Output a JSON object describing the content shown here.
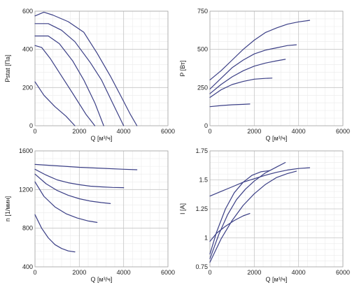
{
  "chart_data": [
    {
      "type": "line",
      "ylabel": "Pstat [Па]",
      "xlabel": "Q [м³/ч]",
      "xlim": [
        0,
        6000
      ],
      "ylim": [
        0,
        600
      ],
      "xticks": [
        0,
        2000,
        4000,
        6000
      ],
      "yticks": [
        0,
        200,
        400,
        600
      ],
      "grid": true,
      "series": [
        {
          "points": [
            [
              0,
              575
            ],
            [
              400,
              595
            ],
            [
              800,
              580
            ],
            [
              1500,
              545
            ],
            [
              2200,
              490
            ],
            [
              2800,
              380
            ],
            [
              3400,
              260
            ],
            [
              3900,
              150
            ],
            [
              4300,
              60
            ],
            [
              4600,
              0
            ]
          ]
        },
        {
          "points": [
            [
              0,
              535
            ],
            [
              600,
              535
            ],
            [
              1200,
              500
            ],
            [
              1800,
              440
            ],
            [
              2500,
              330
            ],
            [
              3000,
              240
            ],
            [
              3500,
              120
            ],
            [
              4000,
              0
            ]
          ]
        },
        {
          "points": [
            [
              0,
              470
            ],
            [
              600,
              470
            ],
            [
              1100,
              430
            ],
            [
              1700,
              340
            ],
            [
              2200,
              240
            ],
            [
              2700,
              120
            ],
            [
              3100,
              0
            ]
          ]
        },
        {
          "points": [
            [
              0,
              420
            ],
            [
              300,
              410
            ],
            [
              700,
              350
            ],
            [
              1200,
              260
            ],
            [
              1700,
              170
            ],
            [
              2300,
              60
            ],
            [
              2700,
              0
            ]
          ]
        },
        {
          "points": [
            [
              0,
              230
            ],
            [
              400,
              160
            ],
            [
              900,
              100
            ],
            [
              1400,
              50
            ],
            [
              1800,
              0
            ]
          ]
        }
      ]
    },
    {
      "type": "line",
      "ylabel": "P [Вт]",
      "xlabel": "Q [м³/ч]",
      "xlim": [
        0,
        6000
      ],
      "ylim": [
        0,
        750
      ],
      "xticks": [
        0,
        2000,
        4000,
        6000
      ],
      "yticks": [
        0,
        250,
        500,
        750
      ],
      "grid": true,
      "series": [
        {
          "points": [
            [
              0,
              300
            ],
            [
              500,
              360
            ],
            [
              1000,
              430
            ],
            [
              1500,
              500
            ],
            [
              2000,
              560
            ],
            [
              2500,
              610
            ],
            [
              3000,
              640
            ],
            [
              3500,
              665
            ],
            [
              4000,
              680
            ],
            [
              4500,
              690
            ]
          ]
        },
        {
          "points": [
            [
              0,
              240
            ],
            [
              500,
              310
            ],
            [
              1000,
              380
            ],
            [
              1500,
              430
            ],
            [
              2000,
              470
            ],
            [
              2500,
              495
            ],
            [
              3000,
              510
            ],
            [
              3500,
              525
            ],
            [
              3900,
              530
            ]
          ]
        },
        {
          "points": [
            [
              0,
              210
            ],
            [
              500,
              270
            ],
            [
              1000,
              320
            ],
            [
              1500,
              360
            ],
            [
              2000,
              390
            ],
            [
              2500,
              410
            ],
            [
              3000,
              425
            ],
            [
              3400,
              435
            ]
          ]
        },
        {
          "points": [
            [
              0,
              185
            ],
            [
              500,
              235
            ],
            [
              1000,
              270
            ],
            [
              1500,
              290
            ],
            [
              2000,
              305
            ],
            [
              2500,
              310
            ],
            [
              2800,
              312
            ]
          ]
        },
        {
          "points": [
            [
              0,
              125
            ],
            [
              500,
              132
            ],
            [
              1000,
              137
            ],
            [
              1500,
              140
            ],
            [
              1800,
              142
            ]
          ]
        }
      ]
    },
    {
      "type": "line",
      "ylabel": "n [1/мин]",
      "xlabel": "Q [м³/ч]",
      "xlim": [
        0,
        6000
      ],
      "ylim": [
        400,
        1600
      ],
      "xticks": [
        0,
        2000,
        4000,
        6000
      ],
      "yticks": [
        400,
        800,
        1200,
        1600
      ],
      "grid": true,
      "series": [
        {
          "points": [
            [
              0,
              1460
            ],
            [
              1000,
              1445
            ],
            [
              2000,
              1430
            ],
            [
              3000,
              1420
            ],
            [
              4000,
              1410
            ],
            [
              4600,
              1405
            ]
          ]
        },
        {
          "points": [
            [
              0,
              1410
            ],
            [
              500,
              1350
            ],
            [
              1000,
              1300
            ],
            [
              1500,
              1270
            ],
            [
              2000,
              1250
            ],
            [
              2500,
              1235
            ],
            [
              3000,
              1228
            ],
            [
              3500,
              1222
            ],
            [
              4000,
              1220
            ]
          ]
        },
        {
          "points": [
            [
              0,
              1360
            ],
            [
              500,
              1260
            ],
            [
              1000,
              1190
            ],
            [
              1500,
              1140
            ],
            [
              2000,
              1105
            ],
            [
              2500,
              1080
            ],
            [
              3000,
              1065
            ],
            [
              3400,
              1055
            ]
          ]
        },
        {
          "points": [
            [
              0,
              1280
            ],
            [
              400,
              1130
            ],
            [
              900,
              1020
            ],
            [
              1400,
              950
            ],
            [
              1900,
              905
            ],
            [
              2400,
              875
            ],
            [
              2800,
              860
            ]
          ]
        },
        {
          "points": [
            [
              0,
              940
            ],
            [
              300,
              800
            ],
            [
              600,
              700
            ],
            [
              900,
              630
            ],
            [
              1200,
              590
            ],
            [
              1500,
              565
            ],
            [
              1800,
              555
            ]
          ]
        }
      ]
    },
    {
      "type": "line",
      "ylabel": "I [A]",
      "xlabel": "Q [м³/ч]",
      "xlim": [
        0,
        6000
      ],
      "ylim": [
        0.75,
        1.75
      ],
      "xticks": [
        0,
        2000,
        4000,
        6000
      ],
      "yticks": [
        0.75,
        1,
        1.25,
        1.5,
        1.75
      ],
      "ytick_labels": [
        "0.75",
        "1",
        "1.25",
        "1.5",
        "1.75"
      ],
      "grid": true,
      "series": [
        {
          "points": [
            [
              0,
              1.36
            ],
            [
              500,
              1.4
            ],
            [
              1000,
              1.44
            ],
            [
              1500,
              1.48
            ],
            [
              2000,
              1.51
            ],
            [
              2500,
              1.54
            ],
            [
              3000,
              1.565
            ],
            [
              3500,
              1.585
            ],
            [
              4000,
              1.598
            ],
            [
              4500,
              1.605
            ]
          ]
        },
        {
          "points": [
            [
              0,
              0.79
            ],
            [
              500,
              0.99
            ],
            [
              1000,
              1.15
            ],
            [
              1500,
              1.28
            ],
            [
              2000,
              1.38
            ],
            [
              2500,
              1.46
            ],
            [
              3000,
              1.52
            ],
            [
              3500,
              1.555
            ],
            [
              3900,
              1.575
            ]
          ]
        },
        {
          "points": [
            [
              0,
              0.82
            ],
            [
              400,
              1.03
            ],
            [
              800,
              1.2
            ],
            [
              1200,
              1.33
            ],
            [
              1600,
              1.42
            ],
            [
              2000,
              1.49
            ],
            [
              2500,
              1.56
            ],
            [
              3000,
              1.61
            ],
            [
              3400,
              1.65
            ]
          ]
        },
        {
          "points": [
            [
              0,
              0.86
            ],
            [
              300,
              1.05
            ],
            [
              700,
              1.25
            ],
            [
              1100,
              1.39
            ],
            [
              1500,
              1.48
            ],
            [
              1900,
              1.54
            ],
            [
              2300,
              1.57
            ],
            [
              2700,
              1.58
            ]
          ]
        },
        {
          "points": [
            [
              0,
              0.97
            ],
            [
              300,
              1.04
            ],
            [
              700,
              1.1
            ],
            [
              1100,
              1.15
            ],
            [
              1500,
              1.19
            ],
            [
              1800,
              1.21
            ]
          ]
        }
      ]
    }
  ]
}
